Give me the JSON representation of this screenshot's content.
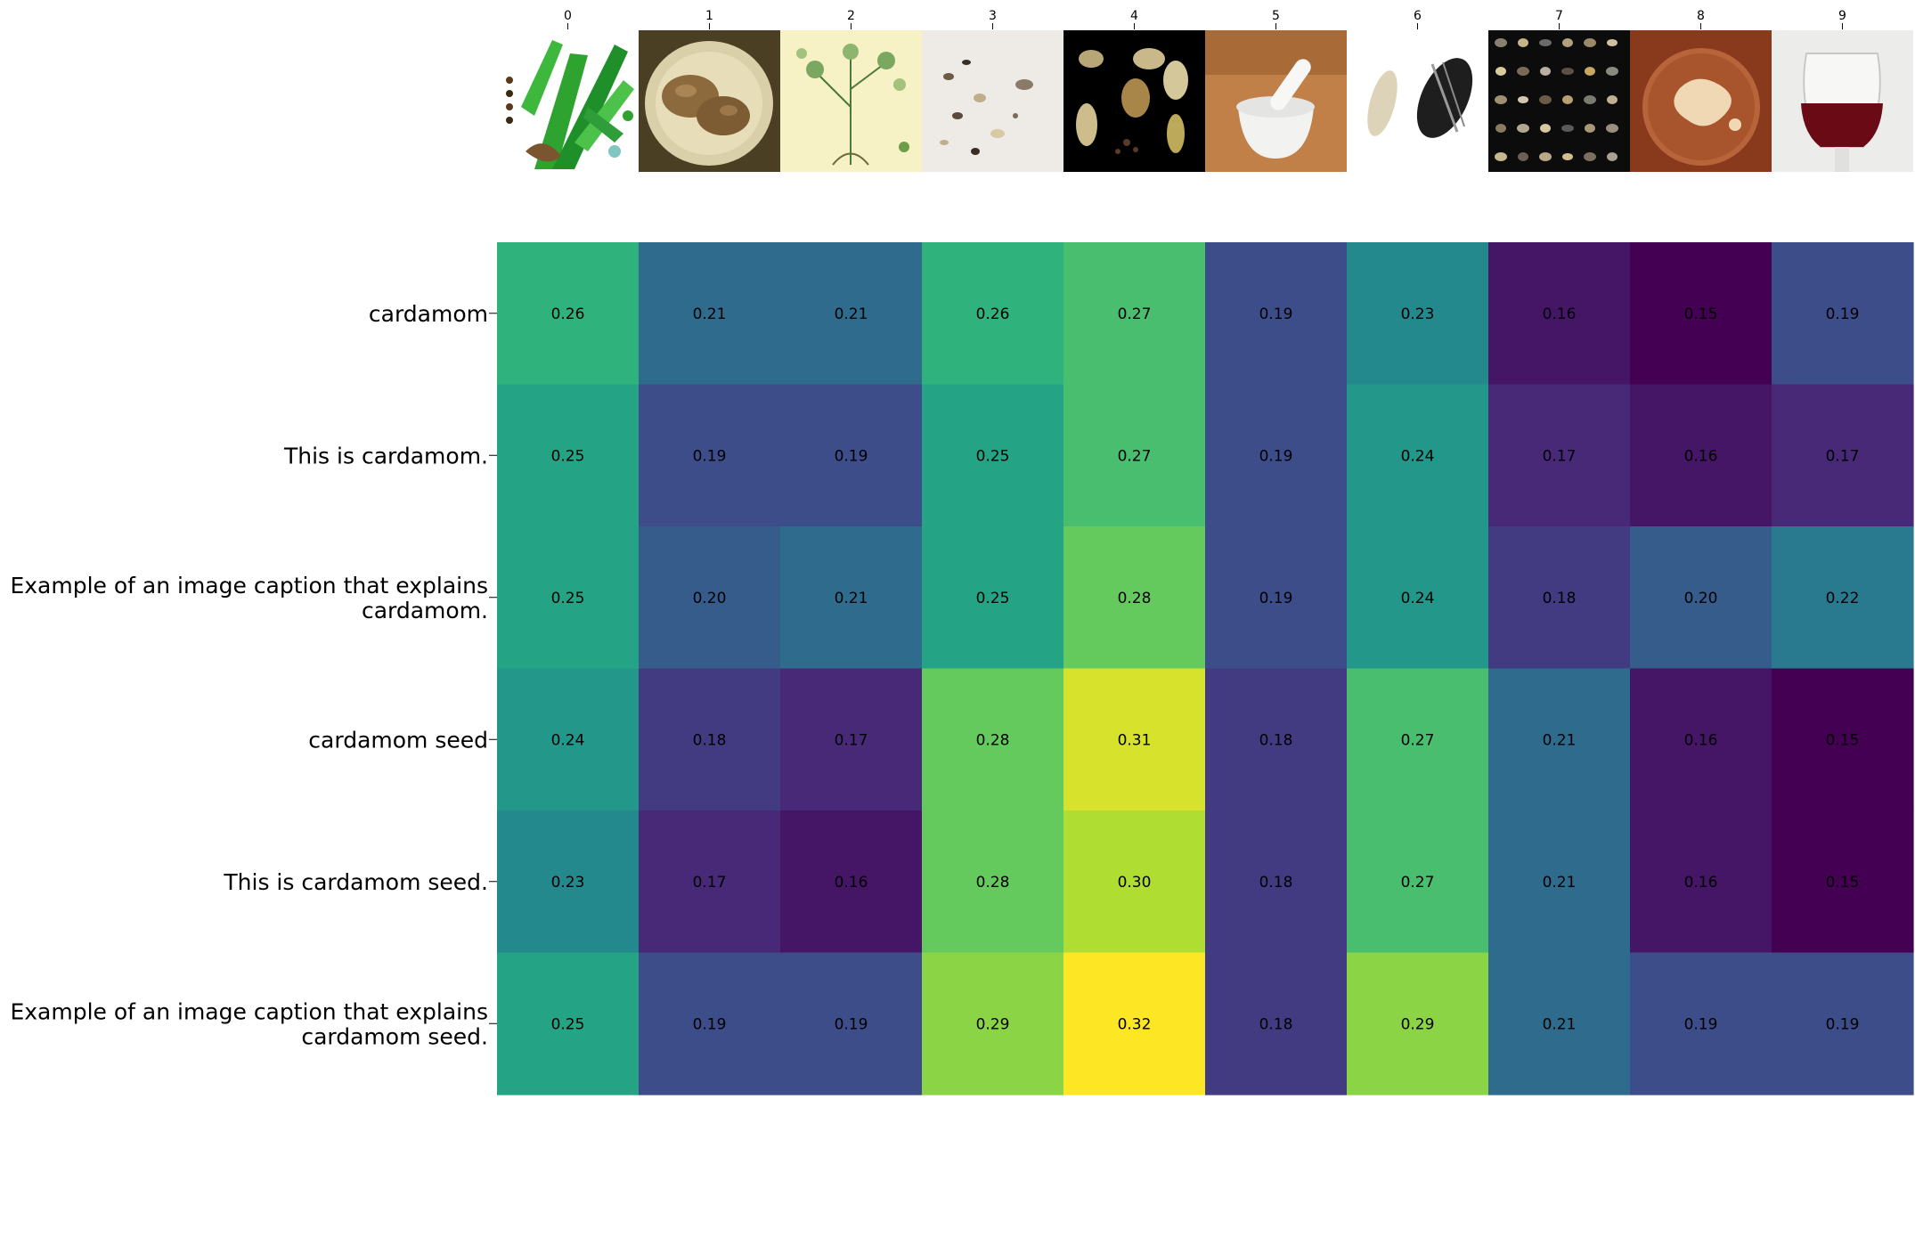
{
  "chart_data": {
    "type": "heatmap",
    "title": "",
    "xlabel": "",
    "ylabel": "",
    "colormap": "viridis",
    "value_range": [
      0.15,
      0.32
    ],
    "x_ticks": [
      "0",
      "1",
      "2",
      "3",
      "4",
      "5",
      "6",
      "7",
      "8",
      "9"
    ],
    "column_images": [
      "botanical-illustration",
      "potatoes-on-plate",
      "botanical-drawing",
      "scattered-seeds",
      "cardamom-pods-on-black",
      "mortar-and-pestle",
      "sunflower-seeds",
      "seed-collection-grid",
      "liquid-in-glass-dish",
      "red-wine-glass"
    ],
    "rows": [
      {
        "label": [
          "cardamom"
        ],
        "values": [
          0.26,
          0.21,
          0.21,
          0.26,
          0.27,
          0.19,
          0.23,
          0.16,
          0.15,
          0.19
        ]
      },
      {
        "label": [
          "This is cardamom."
        ],
        "values": [
          0.25,
          0.19,
          0.19,
          0.25,
          0.27,
          0.19,
          0.24,
          0.17,
          0.16,
          0.17
        ]
      },
      {
        "label": [
          "Example of an image caption that explains",
          "cardamom."
        ],
        "values": [
          0.25,
          0.2,
          0.21,
          0.25,
          0.28,
          0.19,
          0.24,
          0.18,
          0.2,
          0.22
        ]
      },
      {
        "label": [
          "cardamom seed"
        ],
        "values": [
          0.24,
          0.18,
          0.17,
          0.28,
          0.31,
          0.18,
          0.27,
          0.21,
          0.16,
          0.15
        ]
      },
      {
        "label": [
          "This is cardamom seed."
        ],
        "values": [
          0.23,
          0.17,
          0.16,
          0.28,
          0.3,
          0.18,
          0.27,
          0.21,
          0.16,
          0.15
        ]
      },
      {
        "label": [
          "Example of an image caption that explains",
          "cardamom seed."
        ],
        "values": [
          0.25,
          0.19,
          0.19,
          0.29,
          0.32,
          0.18,
          0.29,
          0.21,
          0.19,
          0.19
        ]
      }
    ]
  }
}
